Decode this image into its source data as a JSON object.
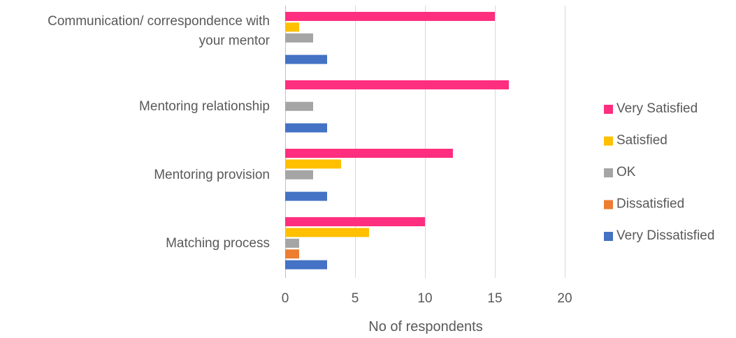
{
  "chart_data": {
    "type": "bar",
    "orientation": "horizontal",
    "categories": [
      [
        "Communication/ correspondence with",
        "your mentor"
      ],
      [
        "Mentoring relationship"
      ],
      [
        "Mentoring provision"
      ],
      [
        "Matching process"
      ]
    ],
    "series": [
      {
        "name": "Very Satisfied",
        "color": "#FF2E7F",
        "values": [
          15,
          16,
          12,
          10
        ]
      },
      {
        "name": "Satisfied",
        "color": "#FFC000",
        "values": [
          1,
          0,
          4,
          6
        ]
      },
      {
        "name": "OK",
        "color": "#A5A5A5",
        "values": [
          2,
          2,
          2,
          1
        ]
      },
      {
        "name": "Dissatisfied",
        "color": "#ED7D31",
        "values": [
          0,
          0,
          0,
          1
        ]
      },
      {
        "name": "Very Dissatisfied",
        "color": "#4472C4",
        "values": [
          3,
          3,
          3,
          3
        ]
      }
    ],
    "xlabel": "No of respondents",
    "ylabel": "",
    "xlim": [
      0,
      20
    ],
    "xticks": [
      0,
      5,
      10,
      15,
      20
    ],
    "grid": "vertical",
    "legend": "right"
  }
}
